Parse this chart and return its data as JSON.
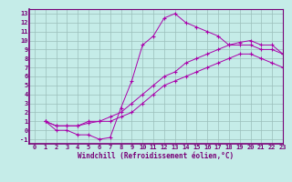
{
  "background_color": "#c5ece8",
  "grid_color": "#9bbfbb",
  "line_color": "#aa00aa",
  "xlim": [
    -0.5,
    23
  ],
  "ylim": [
    -1.5,
    13.5
  ],
  "xticks": [
    0,
    1,
    2,
    3,
    4,
    5,
    6,
    7,
    8,
    9,
    10,
    11,
    12,
    13,
    14,
    15,
    16,
    17,
    18,
    19,
    20,
    21,
    22,
    23
  ],
  "yticks": [
    -1,
    0,
    1,
    2,
    3,
    4,
    5,
    6,
    7,
    8,
    9,
    10,
    11,
    12,
    13
  ],
  "xlabel": "Windchill (Refroidissement éolien,°C)",
  "curve1_x": [
    1,
    2,
    3,
    4,
    5,
    6,
    7,
    8,
    9,
    10,
    11,
    12,
    13,
    14,
    15,
    16,
    17,
    18,
    19,
    20,
    21,
    22,
    23
  ],
  "curve1_y": [
    1,
    0,
    0,
    -0.5,
    -0.5,
    -1,
    -0.8,
    2.5,
    5.5,
    9.5,
    10.5,
    12.5,
    13,
    12,
    11.5,
    11,
    10.5,
    9.5,
    9.5,
    9.5,
    9,
    9,
    8.5
  ],
  "curve2_x": [
    1,
    2,
    3,
    4,
    5,
    6,
    7,
    8,
    9,
    10,
    11,
    12,
    13,
    14,
    15,
    16,
    17,
    18,
    19,
    20,
    21,
    22,
    23
  ],
  "curve2_y": [
    1,
    0.5,
    0.5,
    0.5,
    1,
    1,
    1.5,
    2,
    3,
    4,
    5,
    6,
    6.5,
    7.5,
    8,
    8.5,
    9,
    9.5,
    9.8,
    10,
    9.5,
    9.5,
    8.5
  ],
  "curve3_x": [
    1,
    2,
    3,
    4,
    5,
    6,
    7,
    8,
    9,
    10,
    11,
    12,
    13,
    14,
    15,
    16,
    17,
    18,
    19,
    20,
    21,
    22,
    23
  ],
  "curve3_y": [
    1,
    0.5,
    0.5,
    0.5,
    0.8,
    1,
    1,
    1.5,
    2,
    3,
    4,
    5,
    5.5,
    6,
    6.5,
    7,
    7.5,
    8,
    8.5,
    8.5,
    8,
    7.5,
    7
  ],
  "tick_color": "#770077",
  "tick_fontsize": 5,
  "xlabel_fontsize": 5.5,
  "linewidth": 0.7,
  "markersize": 3
}
